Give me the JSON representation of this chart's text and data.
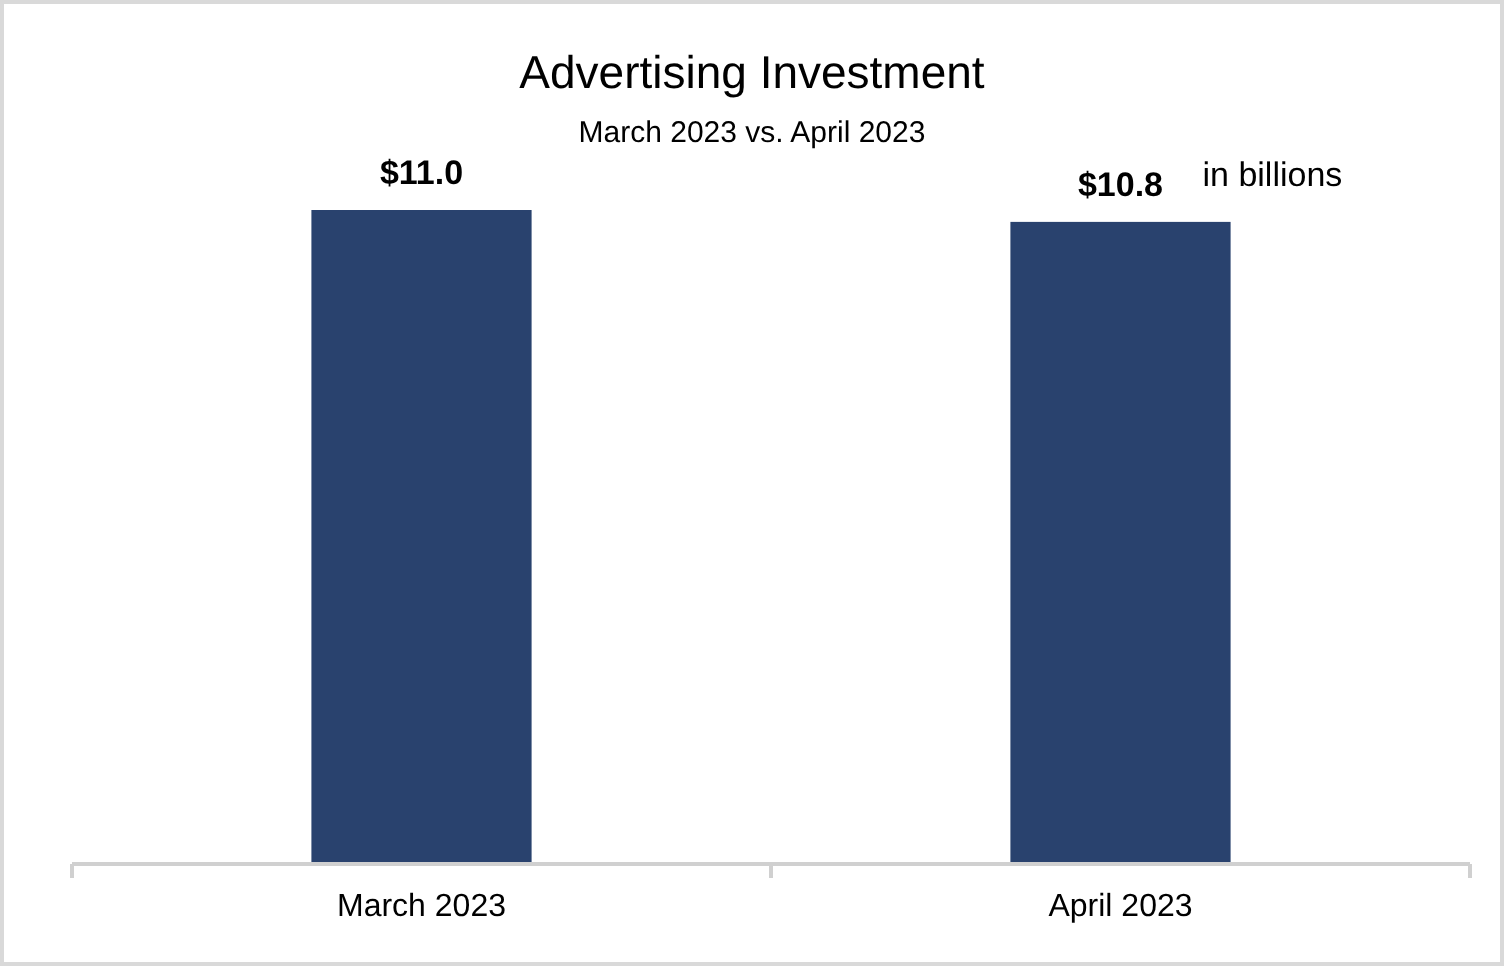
{
  "chart_data": {
    "type": "bar",
    "title": "Advertising Investment",
    "subtitle": "March 2023 vs. April 2023",
    "categories": [
      "March 2023",
      "April 2023"
    ],
    "values": [
      11.0,
      10.8
    ],
    "color": "#29426e",
    "value_labels": [
      "$11.0",
      "$10.8"
    ],
    "annotations": [
      "in billions"
    ]
  }
}
